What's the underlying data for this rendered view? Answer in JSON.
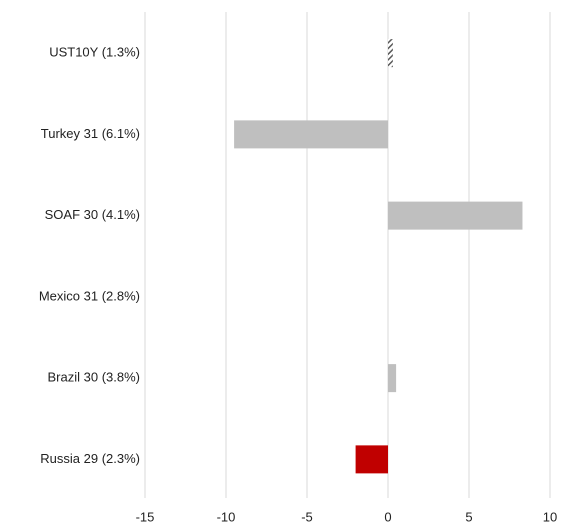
{
  "chart_data": {
    "type": "barh",
    "categories": [
      "UST10Y (1.3%)",
      "Turkey 31 (6.1%)",
      "SOAF 30 (4.1%)",
      "Mexico 31 (2.8%)",
      "Brazil 30 (3.8%)",
      "Russia 29 (2.3%)"
    ],
    "values": [
      0.3,
      -9.5,
      8.3,
      0,
      0.5,
      -2.0
    ],
    "colors": [
      "#595959",
      "#bfbfbf",
      "#bfbfbf",
      "#bfbfbf",
      "#bfbfbf",
      "#c00000"
    ],
    "hatched": [
      true,
      false,
      false,
      false,
      false,
      false
    ],
    "xlim": [
      -15,
      10
    ],
    "xticks": [
      -15,
      -10,
      -5,
      0,
      5,
      10
    ],
    "grid": true
  }
}
